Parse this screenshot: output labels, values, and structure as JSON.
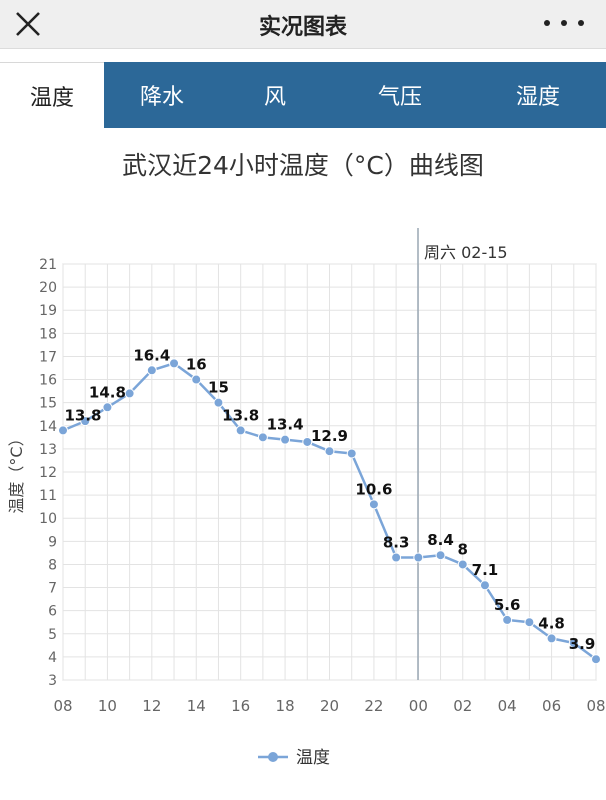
{
  "header": {
    "title": "实况图表",
    "close_icon": "close-icon",
    "more_icon": "more-dots-icon"
  },
  "tabs": [
    {
      "label": "温度",
      "active": true
    },
    {
      "label": "降水",
      "active": false
    },
    {
      "label": "风",
      "active": false
    },
    {
      "label": "气压",
      "active": false
    },
    {
      "label": "湿度",
      "active": false
    }
  ],
  "colors": {
    "tab_bar": "#2c6898",
    "series": "#7ba5d8",
    "grid": "#e3e3e3"
  },
  "chart_data": {
    "type": "line",
    "title": "武汉近24小时温度（°C）曲线图",
    "ylabel": "温度（°C）",
    "xlabel": "",
    "ylim": [
      3,
      21
    ],
    "yticks": [
      3,
      4,
      5,
      6,
      7,
      8,
      9,
      10,
      11,
      12,
      13,
      14,
      15,
      16,
      17,
      18,
      19,
      20,
      21
    ],
    "x_tick_labels": [
      "08",
      "10",
      "12",
      "14",
      "16",
      "18",
      "20",
      "22",
      "00",
      "02",
      "04",
      "06",
      "08"
    ],
    "date_marker": "周六 02-15",
    "grid": true,
    "legend_position": "bottom-center",
    "series": [
      {
        "name": "温度",
        "x": [
          "08",
          "09",
          "10",
          "11",
          "12",
          "13",
          "14",
          "15",
          "16",
          "17",
          "18",
          "19",
          "20",
          "21",
          "22",
          "23",
          "00",
          "01",
          "02",
          "03",
          "04",
          "05",
          "06",
          "07",
          "08"
        ],
        "values": [
          13.8,
          14.2,
          14.8,
          15.4,
          16.4,
          16.7,
          16,
          15,
          13.8,
          13.5,
          13.4,
          13.3,
          12.9,
          12.8,
          10.6,
          8.3,
          8.3,
          8.4,
          8,
          7.1,
          5.6,
          5.5,
          4.8,
          4.6,
          3.9
        ],
        "labels": [
          "13.8",
          "",
          "14.8",
          "",
          "16.4",
          "",
          "16",
          "15",
          "13.8",
          "",
          "13.4",
          "",
          "12.9",
          "",
          "10.6",
          "8.3",
          "",
          "8.4",
          "8",
          "7.1",
          "5.6",
          "",
          "4.8",
          "",
          "3.9"
        ]
      }
    ]
  }
}
